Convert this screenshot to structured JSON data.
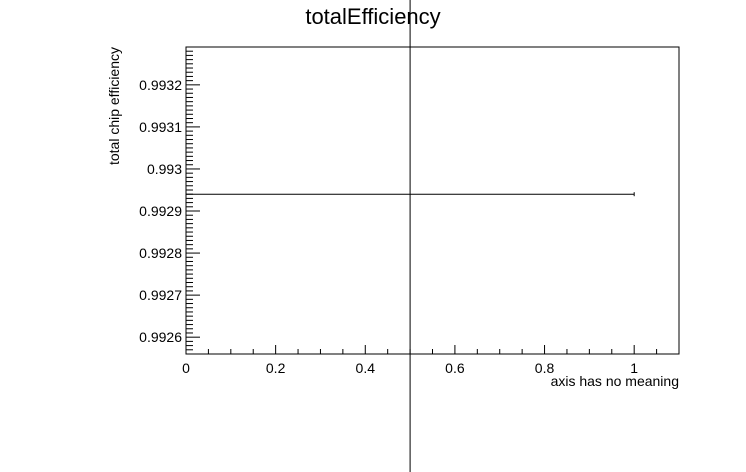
{
  "chart_data": {
    "type": "scatter",
    "title": "totalEfficiency",
    "xlabel": "axis has no meaning",
    "ylabel": "total chip efficiency",
    "xlim": [
      0,
      1.1
    ],
    "ylim": [
      0.99256,
      0.99329
    ],
    "x_ticks": [
      0,
      0.2,
      0.4,
      0.6,
      0.8,
      1
    ],
    "x_tick_labels": [
      "0",
      "0.2",
      "0.4",
      "0.6",
      "0.8",
      "1"
    ],
    "y_ticks": [
      0.9926,
      0.9927,
      0.9928,
      0.9929,
      0.993,
      0.9931,
      0.9932
    ],
    "y_tick_labels": [
      "0.9926",
      "0.9927",
      "0.9928",
      "0.9929",
      "0.993",
      "0.9931",
      "0.9932"
    ],
    "grid": false,
    "legend": "none",
    "points": [
      {
        "x": 0.5,
        "y": 0.99294,
        "x_err": 0.5,
        "y_err_low": 0.00068,
        "y_err_high": 0.00062
      }
    ]
  },
  "colors": {
    "axis": "#000000",
    "marker": "#000000",
    "background": "#ffffff"
  }
}
